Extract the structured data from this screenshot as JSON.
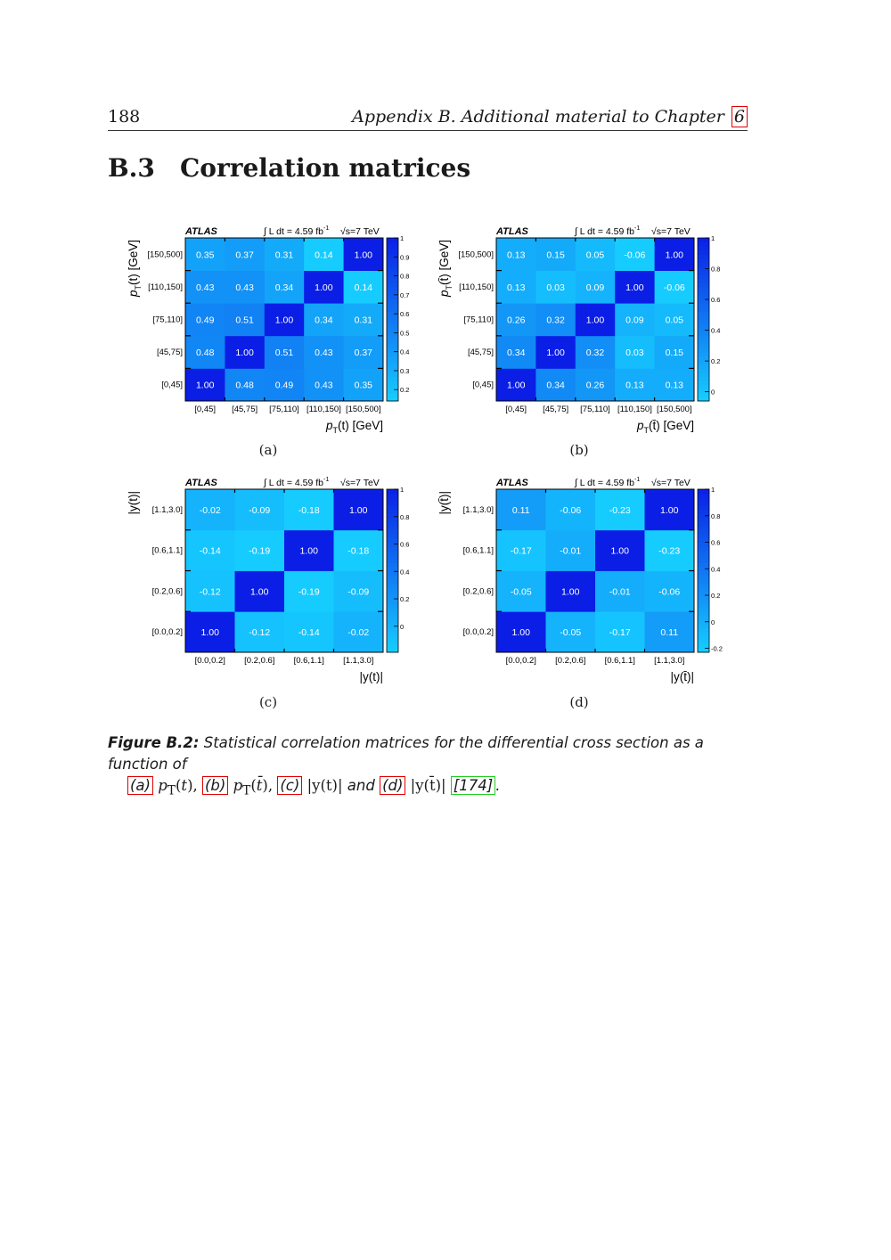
{
  "header": {
    "page_number": "188",
    "running_title": "Appendix B.  Additional material to Chapter",
    "running_ref": "6"
  },
  "section": {
    "number": "B.3",
    "title": "Correlation matrices"
  },
  "figure": {
    "caption": {
      "label": "Figure B.2:",
      "text_start": "Statistical correlation matrices for the differential cross section as a function of",
      "ref_a": "(a)",
      "math_a": "p",
      "ref_b": "(b)",
      "math_b": "p",
      "ref_c": "(c)",
      "math_c": "|y(t)|",
      "and_word": "and",
      "ref_d": "(d)",
      "math_d": "|y(t̄)|",
      "cite": "[174]"
    },
    "panels": [
      {
        "sublabel": "(a)",
        "experiment": "ATLAS",
        "lumi": "∫ L dt = 4.59 fb",
        "lumi_exp": "-1",
        "energy": "√s=7 TeV",
        "xlabel": "p_T(t) [GeV]",
        "ylabel": "p_T(t) [GeV]",
        "categories": [
          "[0,45]",
          "[45,75]",
          "[75,110]",
          "[110,150]",
          "[150,500]"
        ],
        "colorbar_ticks": [
          "1",
          "0.9",
          "0.8",
          "0.7",
          "0.6",
          "0.5",
          "0.4",
          "0.3",
          "0.2"
        ],
        "zlim": [
          0.14,
          1.0
        ]
      },
      {
        "sublabel": "(b)",
        "experiment": "ATLAS",
        "lumi": "∫ L dt = 4.59 fb",
        "lumi_exp": "-1",
        "energy": "√s=7 TeV",
        "xlabel": "p_T(t̄) [GeV]",
        "ylabel": "p_T(t̄) [GeV]",
        "categories": [
          "[0,45]",
          "[45,75]",
          "[75,110]",
          "[110,150]",
          "[150,500]"
        ],
        "colorbar_ticks": [
          "1",
          "0.8",
          "0.6",
          "0.4",
          "0.2",
          "0"
        ],
        "zlim": [
          -0.06,
          1.0
        ]
      },
      {
        "sublabel": "(c)",
        "experiment": "ATLAS",
        "lumi": "∫ L dt = 4.59 fb",
        "lumi_exp": "-1",
        "energy": "√s=7 TeV",
        "xlabel": "|y(t)|",
        "ylabel": "|y(t)|",
        "categories": [
          "[0.0,0.2]",
          "[0.2,0.6]",
          "[0.6,1.1]",
          "[1.1,3.0]"
        ],
        "colorbar_ticks": [
          "1",
          "0.8",
          "0.6",
          "0.4",
          "0.2",
          "0"
        ],
        "zlim": [
          -0.19,
          1.0
        ]
      },
      {
        "sublabel": "(d)",
        "experiment": "ATLAS",
        "lumi": "∫ L dt = 4.59 fb",
        "lumi_exp": "-1",
        "energy": "√s=7 TeV",
        "xlabel": "|y(t̄)|",
        "ylabel": "|y(t̄)|",
        "categories": [
          "[0.0,0.2]",
          "[0.2,0.6]",
          "[0.6,1.1]",
          "[1.1,3.0]"
        ],
        "colorbar_ticks": [
          "1",
          "0.8",
          "0.6",
          "0.4",
          "0.2",
          "0",
          "-0.2"
        ],
        "zlim": [
          -0.23,
          1.0
        ]
      }
    ]
  },
  "chart_data": [
    {
      "type": "heatmap",
      "x": [
        "[0,45]",
        "[45,75]",
        "[75,110]",
        "[110,150]",
        "[150,500]"
      ],
      "y": [
        "[0,45]",
        "[45,75]",
        "[75,110]",
        "[110,150]",
        "[150,500]"
      ],
      "values": [
        [
          1.0,
          0.48,
          0.49,
          0.43,
          0.35
        ],
        [
          0.48,
          1.0,
          0.51,
          0.43,
          0.37
        ],
        [
          0.49,
          0.51,
          1.0,
          0.34,
          0.31
        ],
        [
          0.43,
          0.43,
          0.34,
          1.0,
          0.14
        ],
        [
          0.35,
          0.37,
          0.31,
          0.14,
          1.0
        ]
      ],
      "labels": [
        [
          "1.00",
          "0.48",
          "0.49",
          "0.43",
          "0.35"
        ],
        [
          "0.48",
          "1.00",
          "0.51",
          "0.43",
          "0.37"
        ],
        [
          "0.49",
          "0.51",
          "1.00",
          "0.34",
          "0.31"
        ],
        [
          "0.43",
          "0.43",
          "0.34",
          "1.00",
          "0.14"
        ],
        [
          "0.35",
          "0.37",
          "0.31",
          "0.14",
          "1.00"
        ]
      ]
    },
    {
      "type": "heatmap",
      "x": [
        "[0,45]",
        "[45,75]",
        "[75,110]",
        "[110,150]",
        "[150,500]"
      ],
      "y": [
        "[0,45]",
        "[45,75]",
        "[75,110]",
        "[110,150]",
        "[150,500]"
      ],
      "values": [
        [
          1.0,
          0.34,
          0.26,
          0.13,
          0.13
        ],
        [
          0.34,
          1.0,
          0.32,
          0.03,
          0.15
        ],
        [
          0.26,
          0.32,
          1.0,
          0.09,
          0.05
        ],
        [
          0.13,
          0.03,
          0.09,
          1.0,
          -0.06
        ],
        [
          0.13,
          0.15,
          0.05,
          -0.06,
          1.0
        ]
      ],
      "labels": [
        [
          "1.00",
          "0.34",
          "0.26",
          "0.13",
          "0.13"
        ],
        [
          "0.34",
          "1.00",
          "0.32",
          "0.03",
          "0.15"
        ],
        [
          "0.26",
          "0.32",
          "1.00",
          "0.09",
          "0.05"
        ],
        [
          "0.13",
          "0.03",
          "0.09",
          "1.00",
          "-0.06"
        ],
        [
          "0.13",
          "0.15",
          "0.05",
          "-0.06",
          "1.00"
        ]
      ]
    },
    {
      "type": "heatmap",
      "x": [
        "[0.0,0.2]",
        "[0.2,0.6]",
        "[0.6,1.1]",
        "[1.1,3.0]"
      ],
      "y": [
        "[0.0,0.2]",
        "[0.2,0.6]",
        "[0.6,1.1]",
        "[1.1,3.0]"
      ],
      "values": [
        [
          1.0,
          -0.12,
          -0.14,
          -0.02
        ],
        [
          -0.12,
          1.0,
          -0.19,
          -0.09
        ],
        [
          -0.14,
          -0.19,
          1.0,
          -0.18
        ],
        [
          -0.02,
          -0.09,
          -0.18,
          1.0
        ]
      ],
      "labels": [
        [
          "1.00",
          "-0.12",
          "-0.14",
          "-0.02"
        ],
        [
          "-0.12",
          "1.00",
          "-0.19",
          "-0.09"
        ],
        [
          "-0.14",
          "-0.19",
          "1.00",
          "-0.18"
        ],
        [
          "-0.02",
          "-0.09",
          "-0.18",
          "1.00"
        ]
      ]
    },
    {
      "type": "heatmap",
      "x": [
        "[0.0,0.2]",
        "[0.2,0.6]",
        "[0.6,1.1]",
        "[1.1,3.0]"
      ],
      "y": [
        "[0.0,0.2]",
        "[0.2,0.6]",
        "[0.6,1.1]",
        "[1.1,3.0]"
      ],
      "values": [
        [
          1.0,
          -0.05,
          -0.17,
          0.11
        ],
        [
          -0.05,
          1.0,
          -0.01,
          -0.06
        ],
        [
          -0.17,
          -0.01,
          1.0,
          -0.23
        ],
        [
          0.11,
          -0.06,
          -0.23,
          1.0
        ]
      ],
      "labels": [
        [
          "1.00",
          "-0.05",
          "-0.17",
          "0.11"
        ],
        [
          "-0.05",
          "1.00",
          "-0.01",
          "-0.06"
        ],
        [
          "-0.17",
          "-0.01",
          "1.00",
          "-0.23"
        ],
        [
          "0.11",
          "-0.06",
          "-0.23",
          "1.00"
        ]
      ]
    }
  ],
  "colors": {
    "low": "#16ccff",
    "high": "#0a1ee6",
    "ref_box": "#e00000",
    "cite_box": "#22cc22"
  }
}
